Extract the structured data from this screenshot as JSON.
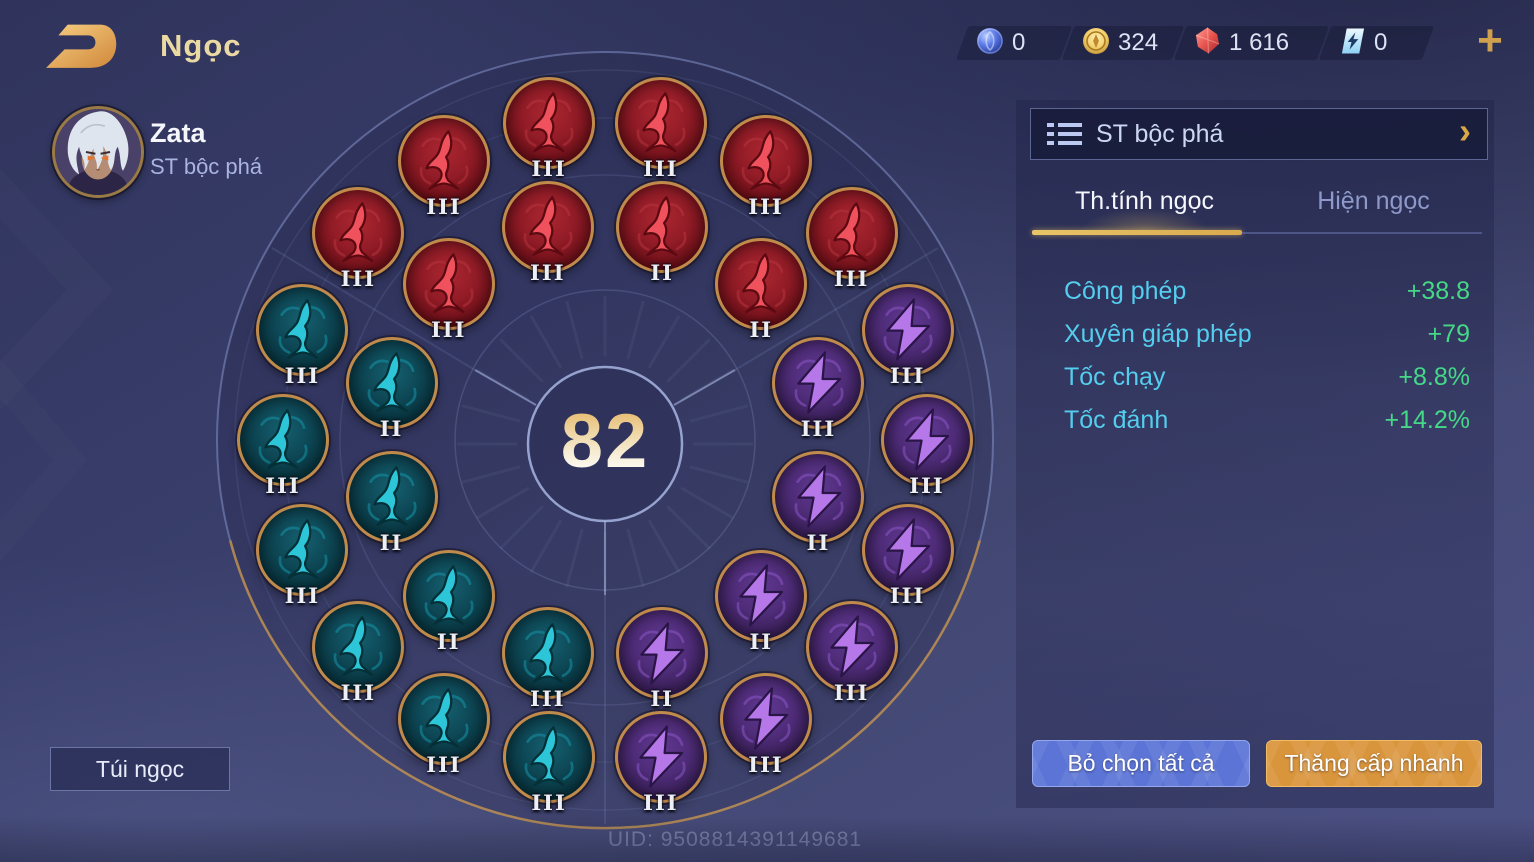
{
  "header": {
    "title": "Ngọc",
    "plus": "+"
  },
  "currencies": [
    {
      "icon": "spirit-orb-icon",
      "value": "0"
    },
    {
      "icon": "gold-coin-icon",
      "value": "324"
    },
    {
      "icon": "ruby-icon",
      "value": "1 616"
    },
    {
      "icon": "arcana-ticket-icon",
      "value": "0"
    }
  ],
  "player": {
    "name": "Zata",
    "preset": "ST bộc phá"
  },
  "wheel": {
    "level": "82",
    "slots": [
      {
        "ring": "outer",
        "angle": 10,
        "color": "red",
        "level": "III"
      },
      {
        "ring": "outer",
        "angle": 30,
        "color": "red",
        "level": "III"
      },
      {
        "ring": "outer",
        "angle": 50,
        "color": "red",
        "level": "III"
      },
      {
        "ring": "outer",
        "angle": 70,
        "color": "purple",
        "level": "III"
      },
      {
        "ring": "outer",
        "angle": 90,
        "color": "purple",
        "level": "III"
      },
      {
        "ring": "outer",
        "angle": 110,
        "color": "purple",
        "level": "III"
      },
      {
        "ring": "outer",
        "angle": 130,
        "color": "purple",
        "level": "III"
      },
      {
        "ring": "outer",
        "angle": 150,
        "color": "purple",
        "level": "III"
      },
      {
        "ring": "outer",
        "angle": 170,
        "color": "purple",
        "level": "III"
      },
      {
        "ring": "outer",
        "angle": 190,
        "color": "teal",
        "level": "III"
      },
      {
        "ring": "outer",
        "angle": 210,
        "color": "teal",
        "level": "III"
      },
      {
        "ring": "outer",
        "angle": 230,
        "color": "teal",
        "level": "III"
      },
      {
        "ring": "outer",
        "angle": 250,
        "color": "teal",
        "level": "III"
      },
      {
        "ring": "outer",
        "angle": 270,
        "color": "teal",
        "level": "III"
      },
      {
        "ring": "outer",
        "angle": 290,
        "color": "teal",
        "level": "III"
      },
      {
        "ring": "outer",
        "angle": 310,
        "color": "red",
        "level": "III"
      },
      {
        "ring": "outer",
        "angle": 330,
        "color": "red",
        "level": "III"
      },
      {
        "ring": "outer",
        "angle": 350,
        "color": "red",
        "level": "III"
      },
      {
        "ring": "inner",
        "angle": 15,
        "color": "red",
        "level": "II"
      },
      {
        "ring": "inner",
        "angle": 45,
        "color": "red",
        "level": "II"
      },
      {
        "ring": "inner",
        "angle": 75,
        "color": "purple",
        "level": "III"
      },
      {
        "ring": "inner",
        "angle": 105,
        "color": "purple",
        "level": "II"
      },
      {
        "ring": "inner",
        "angle": 135,
        "color": "purple",
        "level": "II"
      },
      {
        "ring": "inner",
        "angle": 165,
        "color": "purple",
        "level": "II"
      },
      {
        "ring": "inner",
        "angle": 195,
        "color": "teal",
        "level": "III"
      },
      {
        "ring": "inner",
        "angle": 225,
        "color": "teal",
        "level": "II"
      },
      {
        "ring": "inner",
        "angle": 255,
        "color": "teal",
        "level": "II"
      },
      {
        "ring": "inner",
        "angle": 285,
        "color": "teal",
        "level": "II"
      },
      {
        "ring": "inner",
        "angle": 315,
        "color": "red",
        "level": "III"
      },
      {
        "ring": "inner",
        "angle": 345,
        "color": "red",
        "level": "III"
      }
    ]
  },
  "panel": {
    "preset_title": "ST bộc phá",
    "tabs": [
      {
        "label": "Th.tính ngọc",
        "active": true
      },
      {
        "label": "Hiện ngọc",
        "active": false
      }
    ],
    "stats": [
      {
        "label": "Công phép",
        "value": "+38.8"
      },
      {
        "label": "Xuyên giáp phép",
        "value": "+79"
      },
      {
        "label": "Tốc chạy",
        "value": "+8.8%"
      },
      {
        "label": "Tốc đánh",
        "value": "+14.2%"
      }
    ],
    "buttons": {
      "deselect": "Bỏ chọn tất cả",
      "quick_upgrade": "Thăng cấp nhanh"
    }
  },
  "footer": {
    "bag_button": "Túi ngọc",
    "uid": "UID: 9508814391149681"
  },
  "colors": {
    "accent_gold": "#d9a94e",
    "tab_underline": "#e9c568",
    "stat_label": "#54cdee",
    "stat_value": "#44d887",
    "deselect_button": "#5b74d6",
    "upgrade_button": "#d9953c",
    "gems": {
      "red": {
        "body": "#8f1b25",
        "glyph": "#ef525c",
        "outline": "#5c0a12",
        "curl": "#b5343e"
      },
      "teal": {
        "body": "#0d4450",
        "glyph": "#2cc6d8",
        "outline": "#063038",
        "curl": "#1593a6"
      },
      "purple": {
        "body": "#4e2b77",
        "glyph": "#b678e8",
        "outline": "#2a1547",
        "curl": "#8a55c4"
      }
    }
  }
}
